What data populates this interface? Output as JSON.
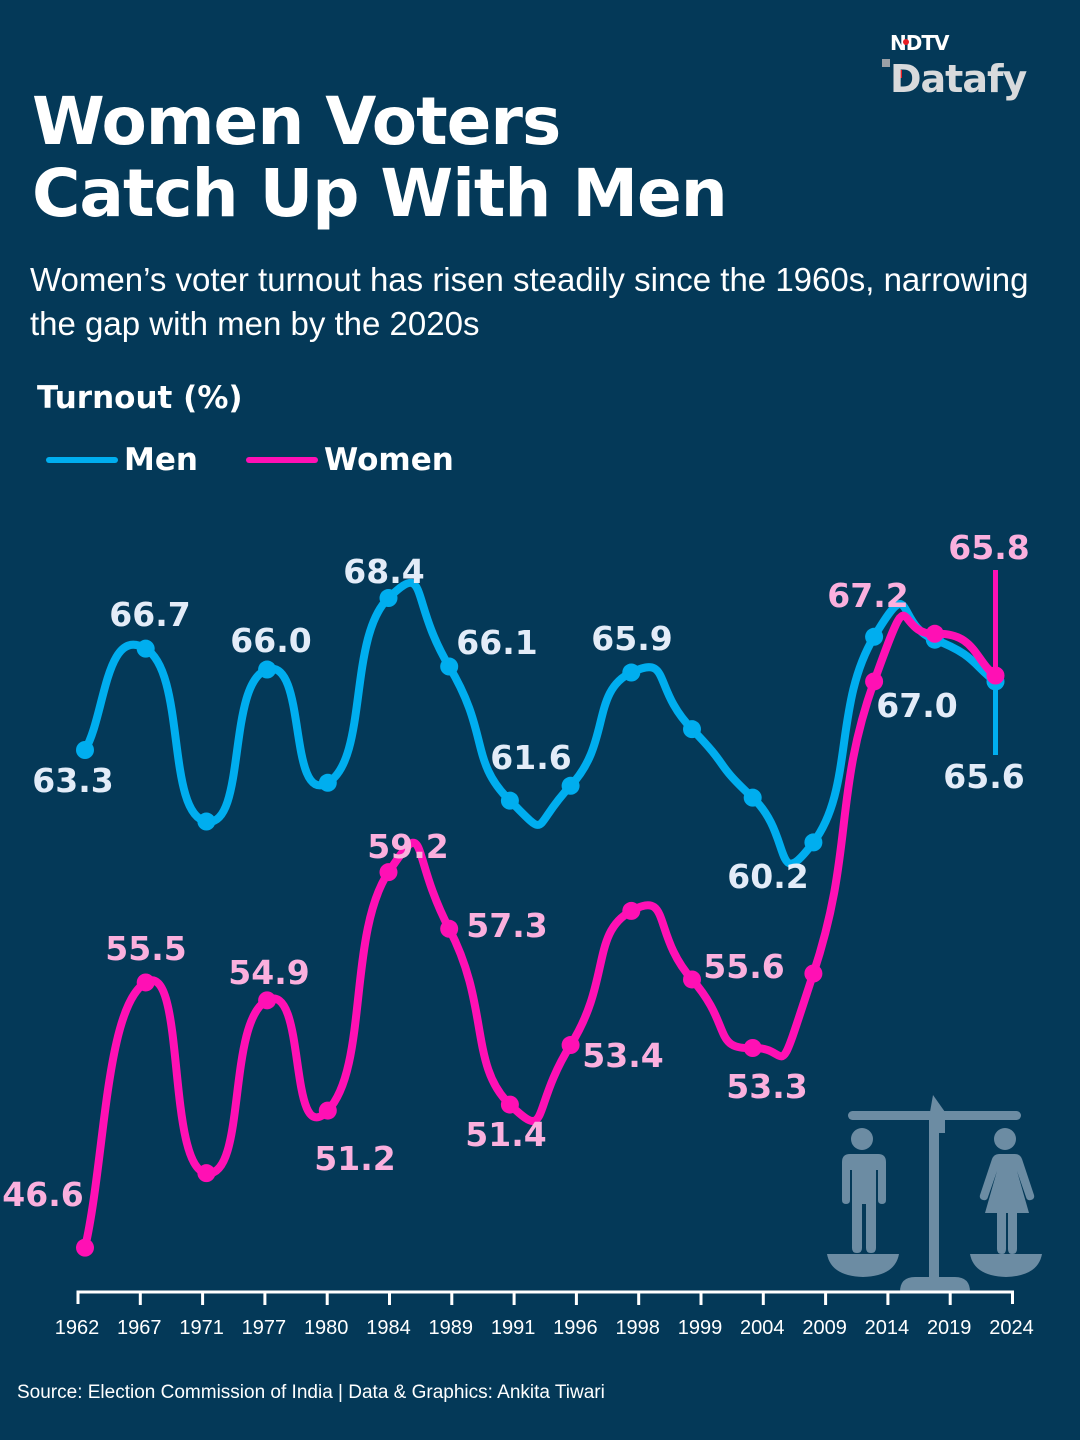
{
  "brand": {
    "line1": "NDTV",
    "line2": "Datafy"
  },
  "title": [
    "Women Voters",
    "Catch Up With Men"
  ],
  "subtitle": " Women’s voter turnout has risen steadily since the 1960s, narrowing the gap with men by the 2020s",
  "source": "Source: Election Commission of India | Data & Graphics: Ankita Tiwari",
  "colors": {
    "background": "#043958",
    "men": "#00aeef",
    "women": "#ff10b4",
    "men_label": "#e3ecf8",
    "women_label": "#fbb0de",
    "icon": "#6c8ca3"
  },
  "chart_data": {
    "type": "line",
    "title": "Women Voters Catch Up With Men",
    "ylabel": "Turnout (%)",
    "xlabel": "",
    "legend": "top-left",
    "grid": false,
    "categories": [
      "1962",
      "1967",
      "1971",
      "1977",
      "1980",
      "1984",
      "1989",
      "1991",
      "1996",
      "1998",
      "1999",
      "2004",
      "2009",
      "2014",
      "2019",
      "2024"
    ],
    "series": [
      {
        "name": "Men",
        "values": [
          63.3,
          66.7,
          60.9,
          66.0,
          62.2,
          68.4,
          66.1,
          61.6,
          62.1,
          65.9,
          64.0,
          61.7,
          60.2,
          67.1,
          67.0,
          65.6
        ],
        "labels": [
          "63.3",
          "66.7",
          null,
          "66.0",
          null,
          "68.4",
          "66.1",
          "61.6",
          null,
          "65.9",
          null,
          null,
          "60.2",
          null,
          "67.0",
          "65.6"
        ]
      },
      {
        "name": "Women",
        "values": [
          46.6,
          55.5,
          49.1,
          54.9,
          51.2,
          59.2,
          57.3,
          51.4,
          53.4,
          57.9,
          55.6,
          53.3,
          55.8,
          65.6,
          67.2,
          65.8
        ],
        "labels": [
          "46.6",
          "55.5",
          null,
          "54.9",
          "51.2",
          "59.2",
          "57.3",
          "51.4",
          "53.4",
          null,
          "55.6",
          "53.3",
          null,
          null,
          "67.2",
          "65.8"
        ]
      }
    ]
  }
}
